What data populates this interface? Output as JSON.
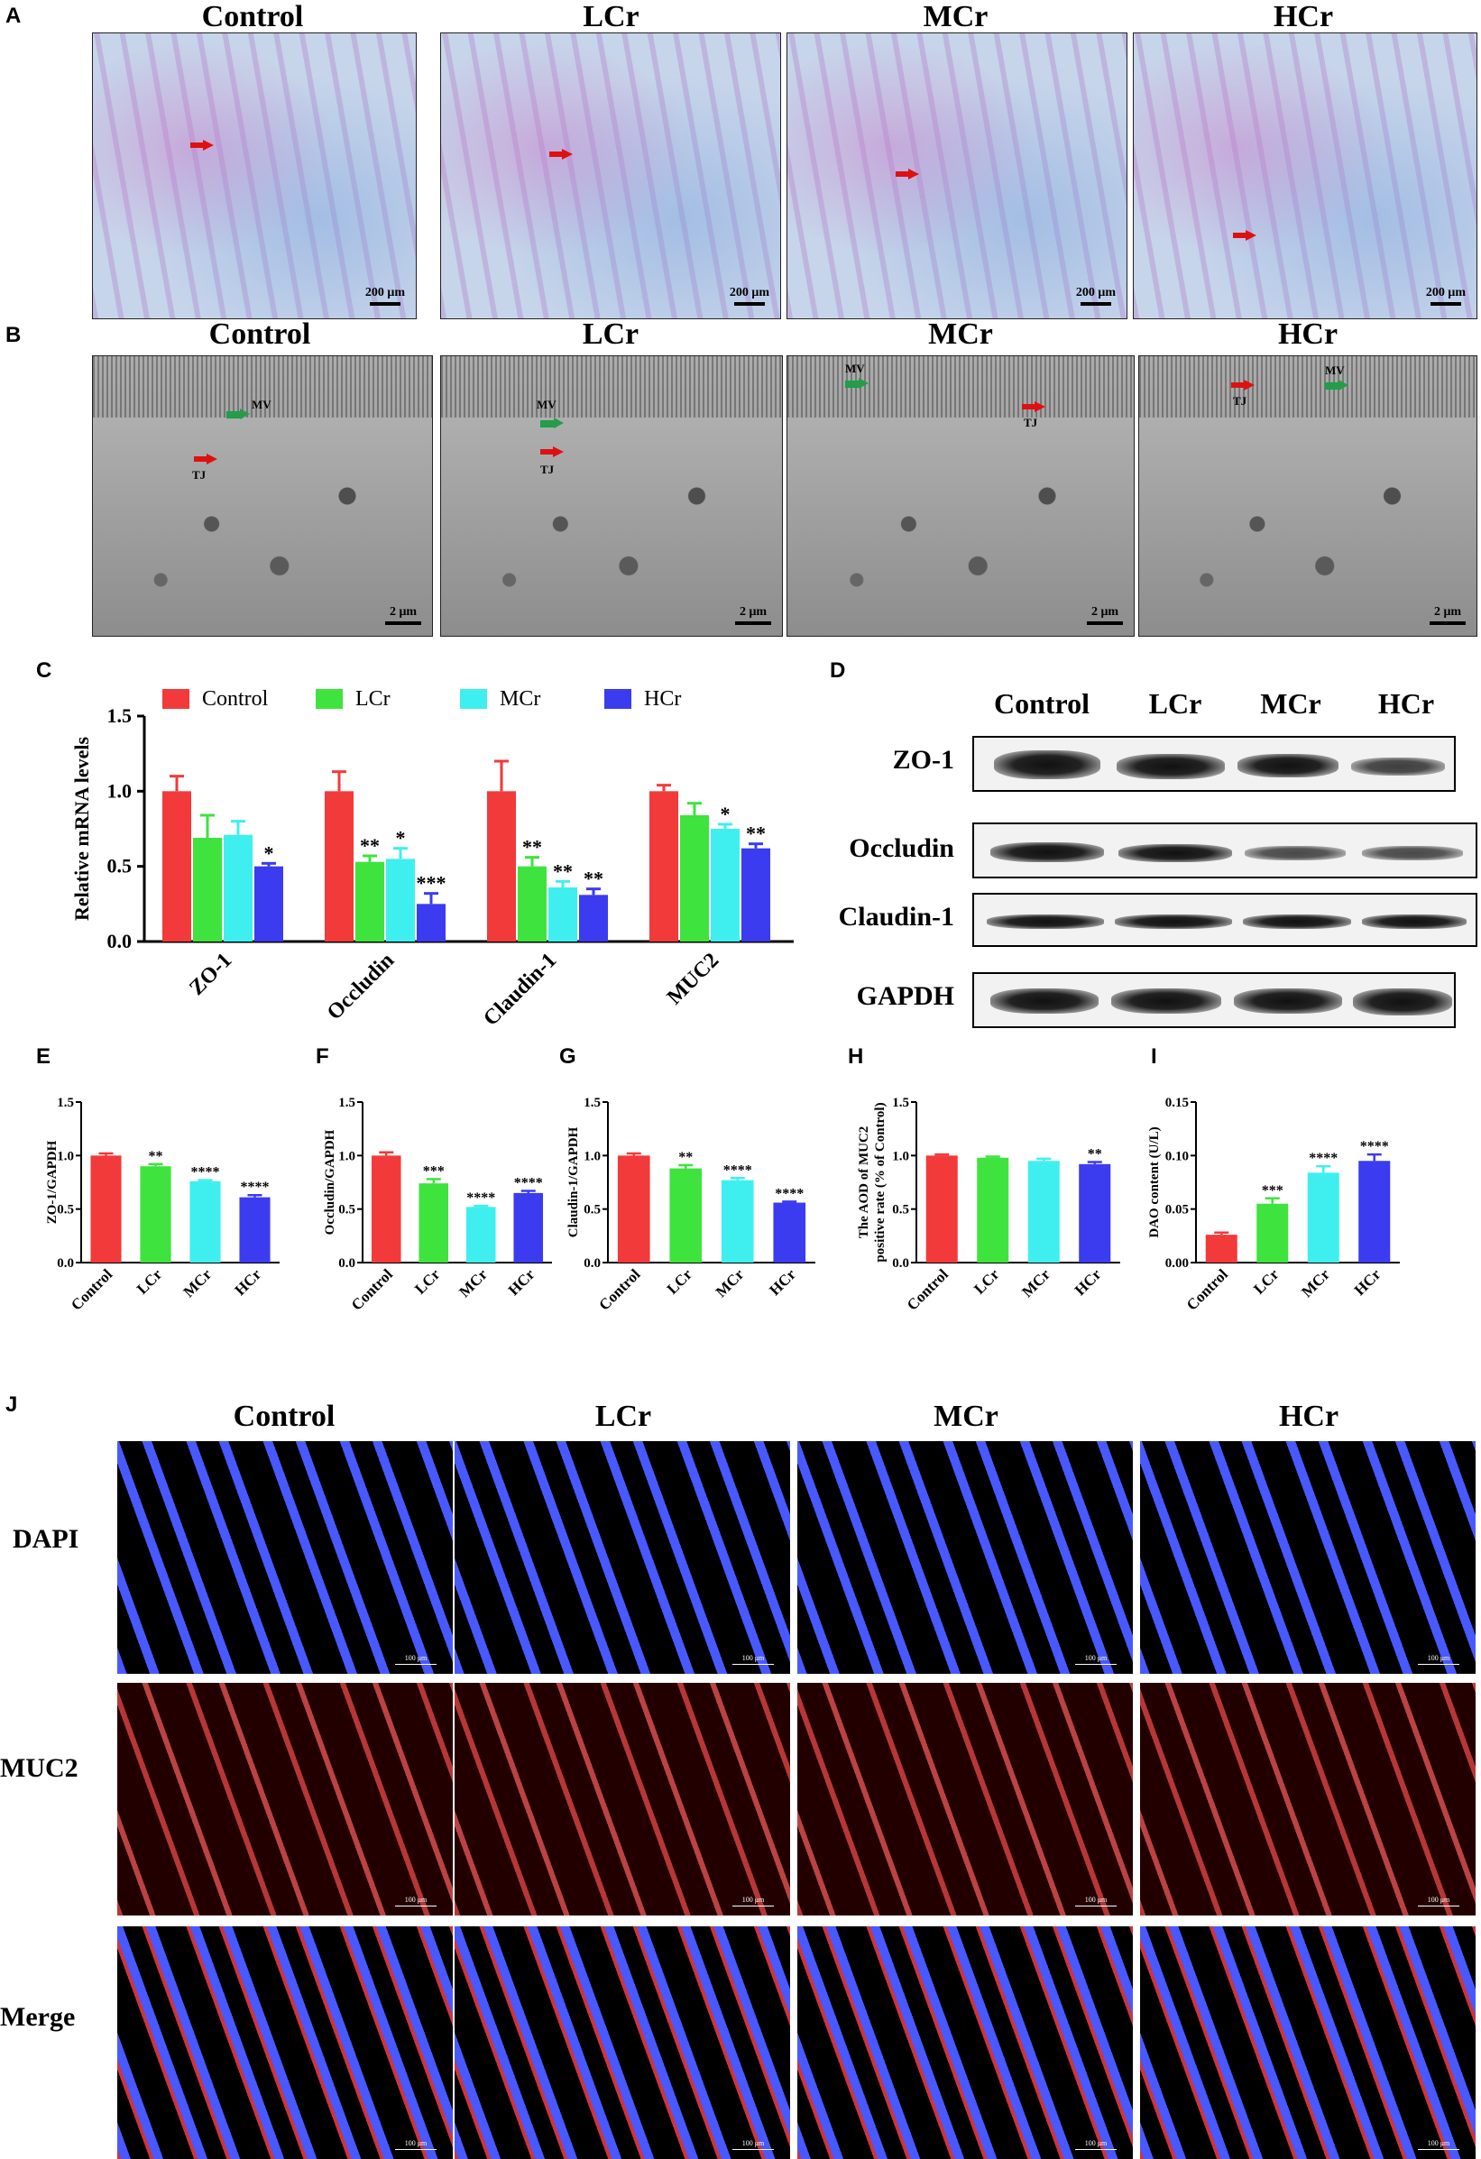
{
  "panel_letters": {
    "a": "A",
    "b": "B",
    "c": "C",
    "d": "D",
    "e": "E",
    "f": "F",
    "g": "G",
    "h": "H",
    "i": "I",
    "j": "J"
  },
  "groups": [
    "Control",
    "LCr",
    "MCr",
    "HCr"
  ],
  "panelA": {
    "scale_label": "200 μm"
  },
  "panelB": {
    "scale_label": "2 μm",
    "mv": "MV",
    "tj": "TJ"
  },
  "panelJ": {
    "rows": [
      "DAPI",
      "MUC2",
      "Merge"
    ],
    "scale_label": "100 μm"
  },
  "panelD": {
    "columns": [
      "Control",
      "LCr",
      "MCr",
      "HCr"
    ],
    "proteins": [
      "ZO-1",
      "Occludin",
      "Claudin-1",
      "GAPDH"
    ]
  },
  "colors": {
    "Control": "#f23a3a",
    "LCr": "#3ee33e",
    "MCr": "#3fefef",
    "HCr": "#3b3bef"
  },
  "chart_data": [
    {
      "id": "C",
      "type": "bar",
      "categories": [
        "ZO-1",
        "Occludin",
        "Claudin-1",
        "MUC2"
      ],
      "series": [
        {
          "name": "Control",
          "values": [
            1.0,
            1.0,
            1.0,
            1.0
          ],
          "errors": [
            0.1,
            0.13,
            0.2,
            0.04
          ],
          "sig": [
            "",
            "",
            "",
            ""
          ]
        },
        {
          "name": "LCr",
          "values": [
            0.69,
            0.53,
            0.5,
            0.84
          ],
          "errors": [
            0.15,
            0.04,
            0.06,
            0.08
          ],
          "sig": [
            "",
            "**",
            "**",
            ""
          ]
        },
        {
          "name": "MCr",
          "values": [
            0.71,
            0.55,
            0.36,
            0.75
          ],
          "errors": [
            0.09,
            0.07,
            0.04,
            0.03
          ],
          "sig": [
            "",
            "*",
            "**",
            "*"
          ]
        },
        {
          "name": "HCr",
          "values": [
            0.5,
            0.25,
            0.31,
            0.62
          ],
          "errors": [
            0.02,
            0.07,
            0.04,
            0.03
          ],
          "sig": [
            "*",
            "***",
            "**",
            "**"
          ]
        }
      ],
      "ylabel": "Relative mRNA levels",
      "ylim": [
        0,
        1.5
      ],
      "yticks": [
        "0.0",
        "0.5",
        "1.0",
        "1.5"
      ],
      "legend": "top"
    },
    {
      "id": "E",
      "type": "bar",
      "categories": [
        "Control",
        "LCr",
        "MCr",
        "HCr"
      ],
      "values": [
        1.0,
        0.9,
        0.76,
        0.61
      ],
      "errors": [
        0.02,
        0.02,
        0.01,
        0.02
      ],
      "sig": [
        "",
        "**",
        "****",
        "****"
      ],
      "ylabel": "ZO-1/GAPDH",
      "ylim": [
        0,
        1.5
      ],
      "yticks": [
        "0.0",
        "0.5",
        "1.0",
        "1.5"
      ]
    },
    {
      "id": "F",
      "type": "bar",
      "categories": [
        "Control",
        "LCr",
        "MCr",
        "HCr"
      ],
      "values": [
        1.0,
        0.74,
        0.52,
        0.65
      ],
      "errors": [
        0.03,
        0.04,
        0.01,
        0.02
      ],
      "sig": [
        "",
        "***",
        "****",
        "****"
      ],
      "ylabel": "Occludin/GAPDH",
      "ylim": [
        0,
        1.5
      ],
      "yticks": [
        "0.0",
        "0.5",
        "1.0",
        "1.5"
      ]
    },
    {
      "id": "G",
      "type": "bar",
      "categories": [
        "Control",
        "LCr",
        "MCr",
        "HCr"
      ],
      "values": [
        1.0,
        0.88,
        0.77,
        0.56
      ],
      "errors": [
        0.02,
        0.03,
        0.02,
        0.01
      ],
      "sig": [
        "",
        "**",
        "****",
        "****"
      ],
      "ylabel": "Claudin-1/GAPDH",
      "ylim": [
        0,
        1.5
      ],
      "yticks": [
        "0.0",
        "0.5",
        "1.0",
        "1.5"
      ]
    },
    {
      "id": "H",
      "type": "bar",
      "categories": [
        "Control",
        "LCr",
        "MCr",
        "HCr"
      ],
      "values": [
        1.0,
        0.98,
        0.95,
        0.92
      ],
      "errors": [
        0.01,
        0.01,
        0.02,
        0.02
      ],
      "sig": [
        "",
        "",
        "",
        "**"
      ],
      "ylabel": "The AOD of MUC2 positive rate (% of Control)",
      "ylim": [
        0,
        1.5
      ],
      "yticks": [
        "0.0",
        "0.5",
        "1.0",
        "1.5"
      ]
    },
    {
      "id": "I",
      "type": "bar",
      "categories": [
        "Control",
        "LCr",
        "MCr",
        "HCr"
      ],
      "values": [
        0.026,
        0.055,
        0.084,
        0.095
      ],
      "errors": [
        0.002,
        0.005,
        0.006,
        0.006
      ],
      "sig": [
        "",
        "***",
        "****",
        "****"
      ],
      "ylabel": "DAO content (U/L)",
      "ylim": [
        0,
        0.15
      ],
      "yticks": [
        "0.00",
        "0.05",
        "0.10",
        "0.15"
      ]
    }
  ]
}
